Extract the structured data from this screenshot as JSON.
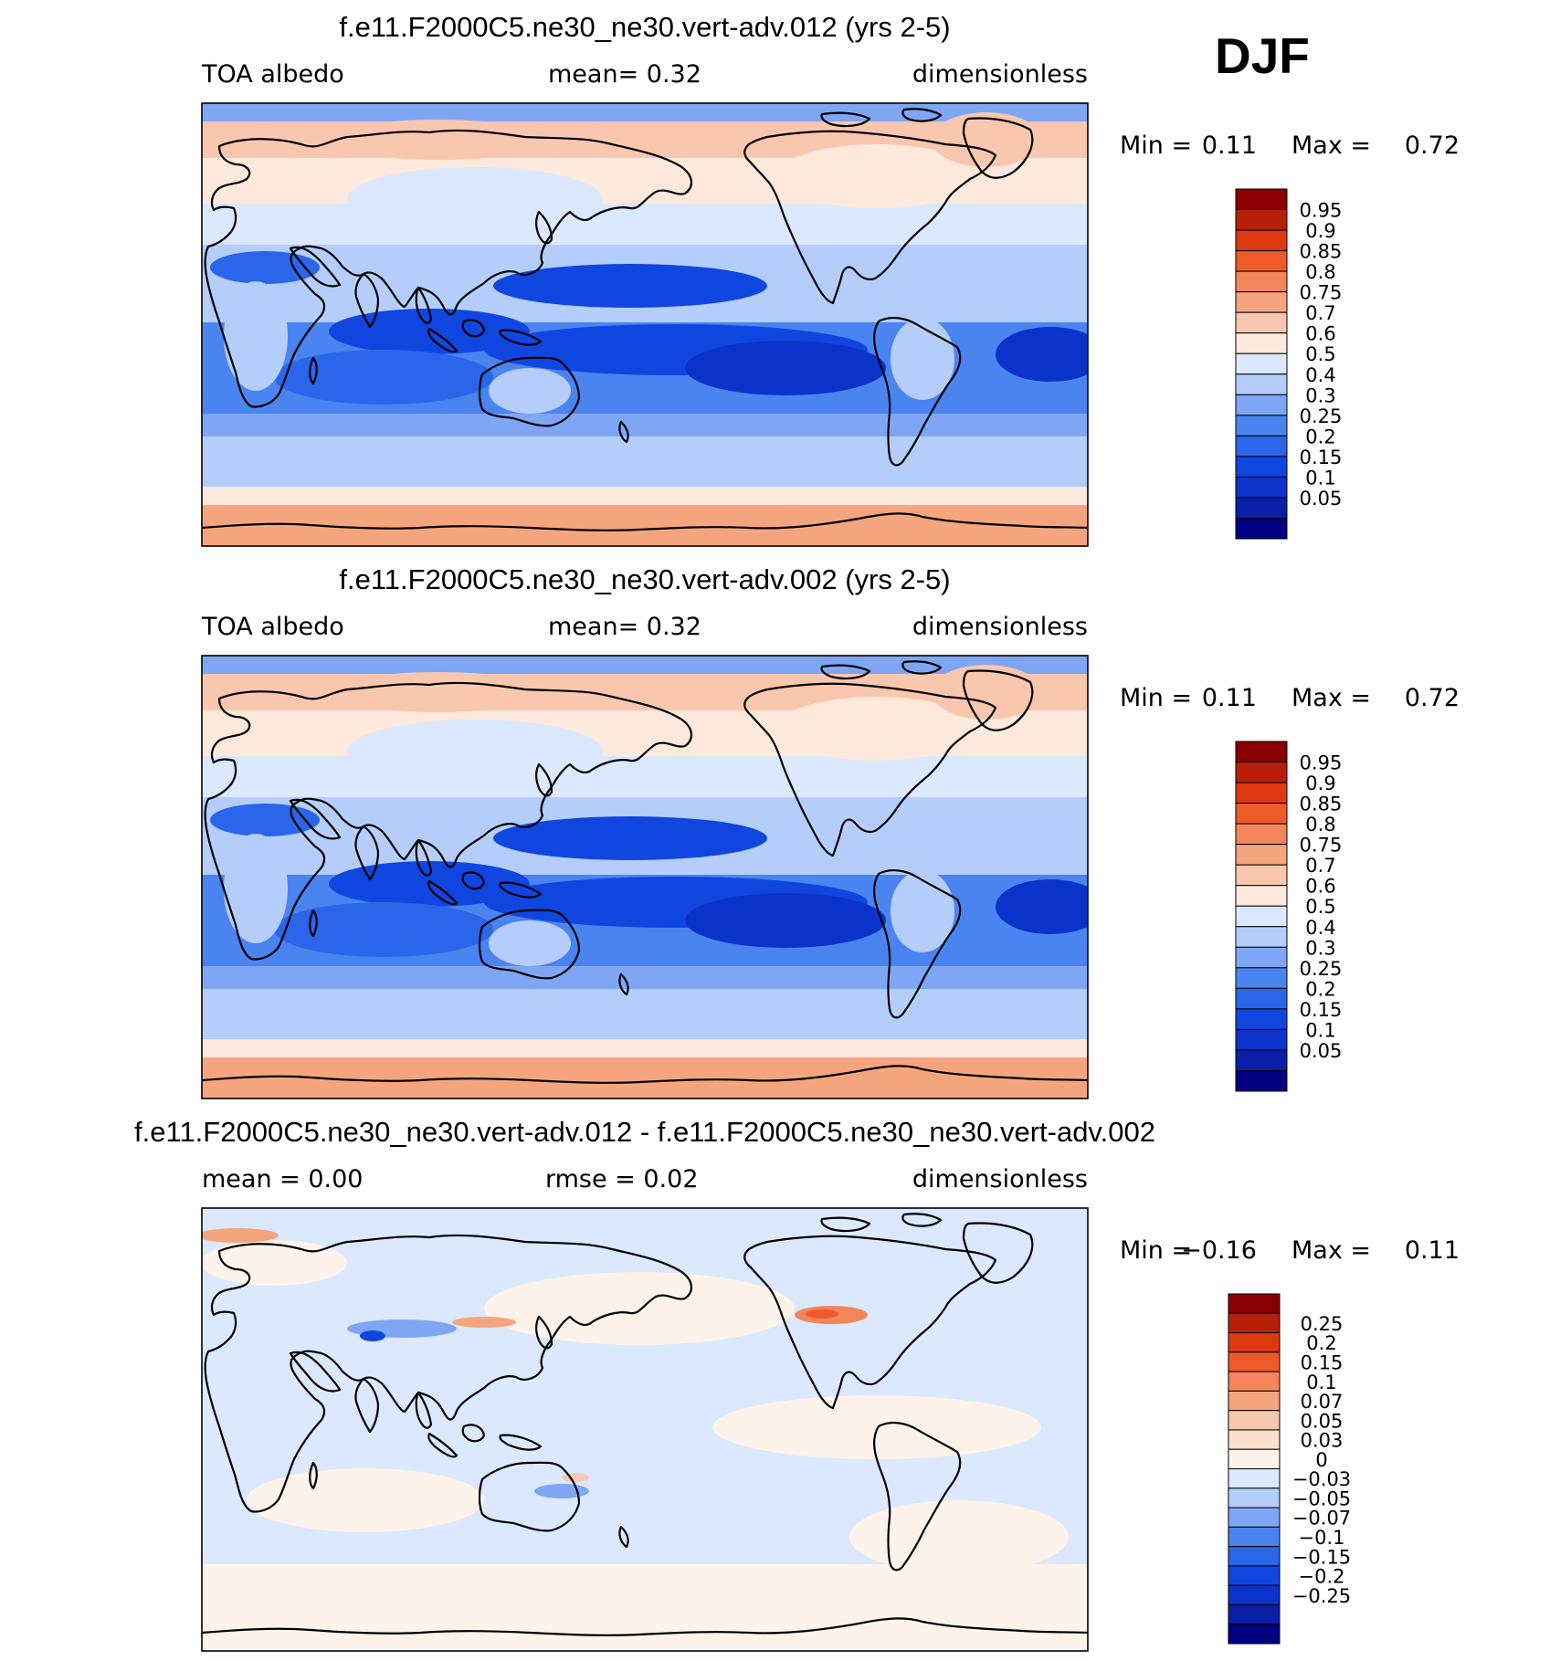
{
  "season": "DJF",
  "palette": {
    "albedo": [
      "#000080",
      "#0a1fa8",
      "#0b33c9",
      "#1046e0",
      "#2a66ea",
      "#4a84f0",
      "#7ea6f5",
      "#b5cdfa",
      "#dbe8fd",
      "#fde9dc",
      "#f8c7ad",
      "#f5a57e",
      "#f4845a",
      "#ef5a2a",
      "#de3810",
      "#b81f08",
      "#8a0000"
    ],
    "diff": [
      "#000080",
      "#0a1fa8",
      "#0b33c9",
      "#1046e0",
      "#2a66ea",
      "#4a84f0",
      "#7ea6f5",
      "#b5cdfa",
      "#dbe8fd",
      "#fdf3ea",
      "#fde0cc",
      "#f8c7ad",
      "#f5a57e",
      "#f4845a",
      "#ef5a2a",
      "#de3810",
      "#b81f08",
      "#8a0000"
    ]
  },
  "panels": [
    {
      "title": "f.e11.F2000C5.ne30_ne30.vert-adv.012 (yrs 2-5)",
      "left_label": "TOA albedo",
      "center_label": "mean=    0.32",
      "right_label": "dimensionless",
      "min_text": "Min =",
      "min_value": "0.11",
      "max_text": "Max =",
      "max_value": "0.72",
      "colorbar_labels": [
        "0.95",
        "0.9",
        "0.85",
        "0.8",
        "0.75",
        "0.7",
        "0.6",
        "0.5",
        "0.4",
        "0.3",
        "0.25",
        "0.2",
        "0.15",
        "0.1",
        "0.05"
      ]
    },
    {
      "title": "f.e11.F2000C5.ne30_ne30.vert-adv.002 (yrs 2-5)",
      "left_label": "TOA albedo",
      "center_label": "mean=    0.32",
      "right_label": "dimensionless",
      "min_text": "Min =",
      "min_value": "0.11",
      "max_text": "Max =",
      "max_value": "0.72",
      "colorbar_labels": [
        "0.95",
        "0.9",
        "0.85",
        "0.8",
        "0.75",
        "0.7",
        "0.6",
        "0.5",
        "0.4",
        "0.3",
        "0.25",
        "0.2",
        "0.15",
        "0.1",
        "0.05"
      ]
    },
    {
      "title": "f.e11.F2000C5.ne30_ne30.vert-adv.012 - f.e11.F2000C5.ne30_ne30.vert-adv.002",
      "left_label": "mean =    0.00",
      "center_label": "rmse =    0.02",
      "right_label": "dimensionless",
      "min_text": "Min =",
      "min_value": "−0.16",
      "max_text": "Max =",
      "max_value": "0.11",
      "colorbar_labels": [
        "0.25",
        "0.2",
        "0.15",
        "0.1",
        "0.07",
        "0.05",
        "0.03",
        "0",
        "−0.03",
        "−0.05",
        "−0.07",
        "−0.1",
        "−0.15",
        "−0.2",
        "−0.25"
      ]
    }
  ],
  "chart_data": [
    {
      "type": "heatmap",
      "title": "f.e11.F2000C5.ne30_ne30.vert-adv.012 (yrs 2-5)",
      "variable": "TOA albedo",
      "units": "dimensionless",
      "mean": 0.32,
      "min": 0.11,
      "max": 0.72,
      "contour_levels": [
        0.05,
        0.1,
        0.15,
        0.2,
        0.25,
        0.3,
        0.4,
        0.5,
        0.6,
        0.7,
        0.75,
        0.8,
        0.85,
        0.9,
        0.95
      ],
      "colors": "albedo"
    },
    {
      "type": "heatmap",
      "title": "f.e11.F2000C5.ne30_ne30.vert-adv.002 (yrs 2-5)",
      "variable": "TOA albedo",
      "units": "dimensionless",
      "mean": 0.32,
      "min": 0.11,
      "max": 0.72,
      "contour_levels": [
        0.05,
        0.1,
        0.15,
        0.2,
        0.25,
        0.3,
        0.4,
        0.5,
        0.6,
        0.7,
        0.75,
        0.8,
        0.85,
        0.9,
        0.95
      ],
      "colors": "albedo"
    },
    {
      "type": "heatmap",
      "title": "f.e11.F2000C5.ne30_ne30.vert-adv.012 - f.e11.F2000C5.ne30_ne30.vert-adv.002",
      "units": "dimensionless",
      "mean": 0.0,
      "rmse": 0.02,
      "min": -0.16,
      "max": 0.11,
      "contour_levels": [
        -0.25,
        -0.2,
        -0.15,
        -0.1,
        -0.07,
        -0.05,
        -0.03,
        0,
        0.03,
        0.05,
        0.07,
        0.1,
        0.15,
        0.2,
        0.25
      ],
      "colors": "diff"
    }
  ]
}
